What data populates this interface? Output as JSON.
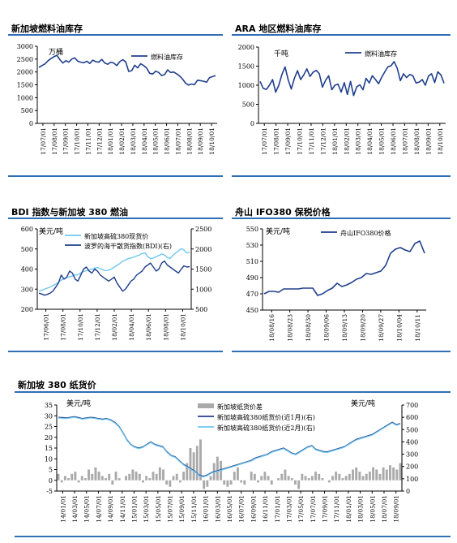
{
  "colors": {
    "dark_blue": "#1f3f8c",
    "light_blue": "#6fc7ef",
    "bar_gray": "#aaaaaa",
    "rule_blue": "#2e6fb5"
  },
  "charts": [
    {
      "id": "sg-fuel-stock",
      "title": "新加坡燃料油库存",
      "unit": "万桶",
      "legend": [
        "燃料油库存"
      ]
    },
    {
      "id": "ara-fuel-stock",
      "title": "ARA 地区燃料油库存",
      "unit": "千吨",
      "legend": [
        "燃料油库存"
      ]
    },
    {
      "id": "bdi-sg380",
      "title": "BDI 指数与新加坡 380 燃油",
      "unit": "美元/吨",
      "legend": [
        "新加坡高硫380现货价",
        "波罗的海干散货指数(BDI)(右)"
      ]
    },
    {
      "id": "zs-ifo380",
      "title": "舟山 IFO380 保税价格",
      "unit": "美元/吨",
      "legend": [
        "舟山IFO380价格"
      ]
    },
    {
      "id": "sg-380-paper",
      "title": "新加坡 380 纸货价",
      "unit_left": "美元/吨",
      "unit_right": "美元/吨",
      "legend": [
        "新加坡纸货价差",
        "新加坡高硫380纸货价(近1月)(右)",
        "新加坡高硫380纸货价(近2月)(右)"
      ]
    }
  ],
  "chart_data": [
    {
      "type": "line",
      "title": "新加坡燃料油库存",
      "ylabel": "万桶",
      "ylim": [
        0,
        3000
      ],
      "yticks": [
        0,
        500,
        1000,
        1500,
        2000,
        2500,
        3000
      ],
      "xticks": [
        "17/07/01",
        "17/08/01",
        "17/09/01",
        "17/10/01",
        "17/11/01",
        "17/12/01",
        "18/01/01",
        "18/02/01",
        "18/03/01",
        "18/04/01",
        "18/05/01",
        "18/06/01",
        "18/07/01",
        "18/08/01",
        "18/09/01",
        "18/10/01"
      ],
      "series": [
        {
          "name": "燃料油库存",
          "values": [
            2180,
            2250,
            2310,
            2430,
            2520,
            2590,
            2650,
            2480,
            2350,
            2440,
            2380,
            2500,
            2550,
            2420,
            2380,
            2360,
            2420,
            2330,
            2460,
            2400,
            2380,
            2490,
            2350,
            2300,
            2380,
            2350,
            2250,
            2400,
            2480,
            2390,
            2020,
            2050,
            2260,
            2160,
            2320,
            2250,
            2150,
            1950,
            1920,
            2030,
            1980,
            1860,
            1900,
            2080,
            1980,
            2000,
            1930,
            1840,
            1720,
            1560,
            1490,
            1530,
            1510,
            1680,
            1660,
            1640,
            1600,
            1780,
            1820,
            1860
          ]
        }
      ],
      "grid": false,
      "legend_position": "top-right"
    },
    {
      "type": "line",
      "title": "ARA 地区燃料油库存",
      "ylabel": "千吨",
      "ylim": [
        0,
        2000
      ],
      "yticks": [
        0,
        500,
        1000,
        1500,
        2000
      ],
      "xticks": [
        "17/07/01",
        "17/08/01",
        "17/09/01",
        "17/10/01",
        "17/11/01",
        "17/12/01",
        "18/01/01",
        "18/02/01",
        "18/03/01",
        "18/04/01",
        "18/05/01",
        "18/06/01",
        "18/07/01",
        "18/08/01",
        "18/09/01",
        "18/10/01"
      ],
      "series": [
        {
          "name": "燃料油库存",
          "values": [
            1100,
            920,
            890,
            1000,
            1150,
            820,
            1000,
            1280,
            1480,
            1150,
            900,
            1180,
            1380,
            1150,
            1270,
            1430,
            1230,
            1340,
            1390,
            1300,
            950,
            1130,
            1250,
            880,
            1000,
            1030,
            820,
            1070,
            760,
            1100,
            730,
            960,
            1010,
            880,
            1180,
            1060,
            1250,
            1150,
            1040,
            1210,
            1350,
            1480,
            1510,
            1620,
            1440,
            1120,
            1300,
            1200,
            1280,
            1250,
            1060,
            1080,
            1150,
            1000,
            1240,
            1300,
            1070,
            1350,
            1270,
            1050
          ]
        }
      ],
      "grid": false,
      "legend_position": "top-right"
    },
    {
      "type": "line",
      "title": "BDI 指数与新加坡 380 燃油",
      "ylabel": "美元/吨",
      "ylim": [
        200,
        600
      ],
      "y2lim": [
        500,
        2500
      ],
      "yticks": [
        200,
        300,
        400,
        500,
        600
      ],
      "y2ticks": [
        500,
        1000,
        1500,
        2000,
        2500
      ],
      "xticks": [
        "17/06/01",
        "17/08/01",
        "17/10/01",
        "17/12/01",
        "18/02/01",
        "18/04/01",
        "18/06/01",
        "18/08/01",
        "18/10/01"
      ],
      "series": [
        {
          "name": "新加坡高硫380现货价",
          "axis": "left",
          "values": [
            290,
            295,
            300,
            305,
            310,
            318,
            325,
            335,
            345,
            352,
            358,
            362,
            365,
            370,
            372,
            380,
            388,
            392,
            395,
            400,
            405,
            408,
            402,
            396,
            392,
            395,
            400,
            410,
            418,
            428,
            438,
            445,
            452,
            455,
            460,
            465,
            470,
            478,
            480,
            462,
            452,
            455,
            462,
            468,
            475,
            470,
            458,
            452,
            468,
            480,
            490,
            502,
            495,
            480,
            485
          ]
        },
        {
          "name": "波罗的海干散货指数(BDI)(右)",
          "axis": "right",
          "values": [
            900,
            880,
            850,
            870,
            900,
            950,
            1050,
            1150,
            1350,
            1250,
            1300,
            1450,
            1400,
            1250,
            1200,
            1350,
            1500,
            1550,
            1450,
            1400,
            1500,
            1450,
            1350,
            1300,
            1250,
            1200,
            1250,
            1300,
            1150,
            1050,
            950,
            1000,
            1100,
            1200,
            1250,
            1350,
            1400,
            1450,
            1550,
            1600,
            1650,
            1550,
            1450,
            1500,
            1650,
            1700,
            1600,
            1550,
            1500,
            1450,
            1400,
            1500,
            1580,
            1550,
            1560
          ]
        }
      ],
      "grid": false,
      "legend_position": "top-left"
    },
    {
      "type": "line",
      "title": "舟山 IFO380 保税价格",
      "ylabel": "美元/吨",
      "ylim": [
        450,
        550
      ],
      "yticks": [
        450,
        470,
        490,
        510,
        530,
        550
      ],
      "xticks": [
        "18/08/16",
        "18/08/23",
        "18/08/30",
        "18/09/06",
        "18/09/13",
        "18/09/20",
        "18/09/27",
        "18/10/04",
        "18/10/11"
      ],
      "series": [
        {
          "name": "舟山IFO380价格",
          "values": [
            470,
            473,
            473,
            472,
            476,
            476,
            476,
            476,
            477,
            477,
            477,
            468,
            470,
            474,
            477,
            483,
            479,
            481,
            484,
            488,
            490,
            495,
            494,
            496,
            498,
            505,
            520,
            525,
            527,
            524,
            522,
            532,
            535,
            520
          ]
        }
      ],
      "grid": false,
      "legend_position": "top-right"
    },
    {
      "type": "line",
      "title": "新加坡 380 纸货价",
      "ylabel": "美元/吨",
      "y2label": "美元/吨",
      "ylim": [
        -5,
        35
      ],
      "y2lim": [
        0,
        700
      ],
      "yticks": [
        -5,
        0,
        5,
        10,
        15,
        20,
        25,
        30,
        35
      ],
      "y2ticks": [
        0,
        100,
        200,
        300,
        400,
        500,
        600,
        700
      ],
      "xticks": [
        "14/01/01",
        "14/03/01",
        "14/05/01",
        "14/07/01",
        "14/09/01",
        "14/11/01",
        "15/01/01",
        "15/03/01",
        "15/05/01",
        "15/07/01",
        "15/09/01",
        "15/11/01",
        "16/01/01",
        "16/03/01",
        "16/05/01",
        "16/07/01",
        "16/09/01",
        "16/11/01",
        "17/01/01",
        "17/03/01",
        "17/05/01",
        "17/07/01",
        "17/09/01",
        "17/11/01",
        "18/01/01",
        "18/03/01",
        "18/05/01",
        "18/07/01",
        "18/09/01"
      ],
      "series": [
        {
          "name": "新加坡纸货价差",
          "axis": "left",
          "type": "bar",
          "values": [
            3,
            -1,
            2,
            1,
            3,
            4,
            -1,
            2,
            1,
            5,
            3,
            6,
            4,
            2,
            1,
            3,
            -2,
            4,
            1,
            0,
            2,
            3,
            5,
            4,
            3,
            -1,
            2,
            1,
            4,
            3,
            6,
            5,
            -2,
            -3,
            2,
            3,
            -1,
            4,
            8,
            15,
            13,
            16,
            19,
            -4,
            -3,
            2,
            8,
            11,
            9,
            -2,
            -3,
            -2,
            4,
            6,
            -1,
            -2,
            0,
            4,
            3,
            -1,
            2,
            4,
            2,
            -2,
            0,
            1,
            3,
            5,
            2,
            1,
            -2,
            -4,
            3,
            2,
            1,
            2,
            4,
            3,
            1,
            0,
            -1,
            2,
            4,
            3,
            1,
            2,
            3,
            5,
            6,
            4,
            2,
            3,
            4,
            6,
            5,
            3,
            6,
            5,
            7,
            6,
            5,
            8
          ]
        },
        {
          "name": "新加坡高硫380纸货价(近1月)(右)",
          "axis": "right",
          "values": [
            600,
            598,
            595,
            600,
            605,
            598,
            590,
            595,
            600,
            596,
            590,
            585,
            590,
            580,
            560,
            530,
            480,
            420,
            380,
            360,
            350,
            360,
            380,
            400,
            380,
            370,
            360,
            320,
            290,
            280,
            250,
            220,
            200,
            180,
            160,
            130,
            120,
            130,
            150,
            160,
            170,
            180,
            190,
            200,
            210,
            220,
            230,
            240,
            250,
            270,
            280,
            290,
            300,
            320,
            330,
            340,
            350,
            330,
            310,
            300,
            320,
            340,
            360,
            370,
            340,
            330,
            320,
            320,
            330,
            340,
            350,
            360,
            380,
            400,
            420,
            430,
            440,
            450,
            460,
            480,
            500,
            520,
            540,
            560,
            540,
            550
          ]
        },
        {
          "name": "新加坡高硫380纸货价(近2月)(右)",
          "axis": "right",
          "values": [
            595,
            592,
            590,
            595,
            600,
            593,
            585,
            590,
            595,
            591,
            585,
            580,
            585,
            575,
            555,
            525,
            475,
            415,
            375,
            355,
            345,
            355,
            375,
            395,
            375,
            365,
            355,
            315,
            285,
            275,
            245,
            215,
            195,
            175,
            155,
            125,
            115,
            125,
            145,
            155,
            165,
            175,
            185,
            195,
            205,
            215,
            225,
            235,
            245,
            265,
            275,
            285,
            295,
            315,
            325,
            335,
            345,
            325,
            305,
            295,
            315,
            335,
            355,
            365,
            335,
            325,
            315,
            315,
            325,
            335,
            345,
            355,
            375,
            395,
            415,
            425,
            435,
            445,
            455,
            475,
            495,
            515,
            535,
            555,
            535,
            545
          ]
        }
      ],
      "grid": false,
      "legend_position": "top-center"
    }
  ]
}
